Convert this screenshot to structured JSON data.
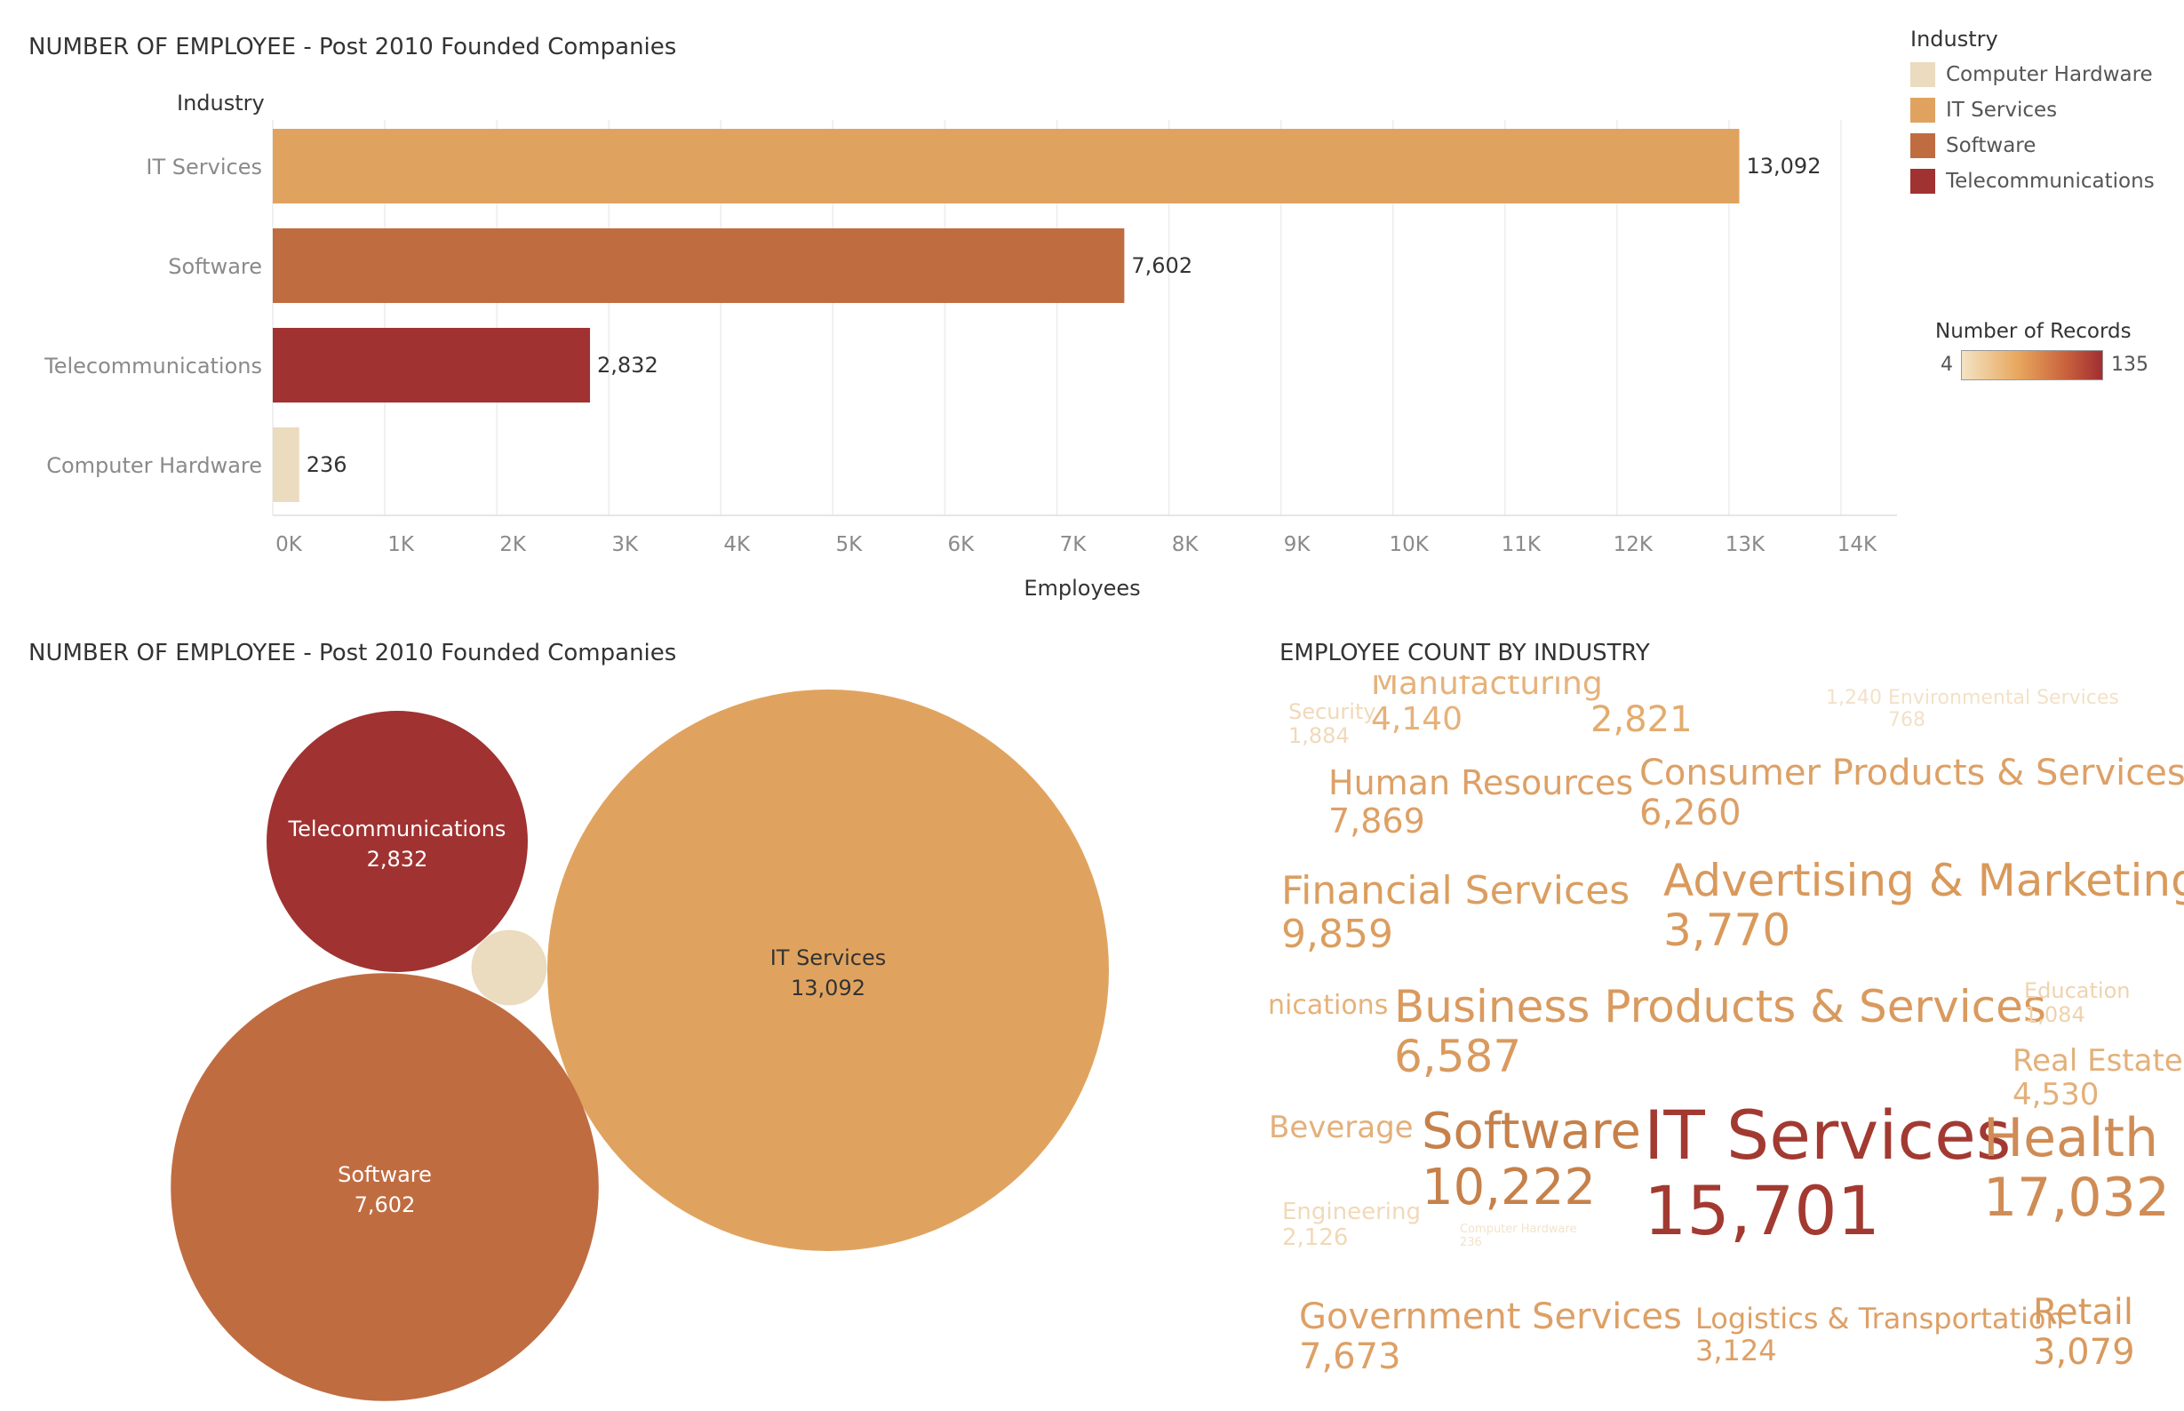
{
  "colors": {
    "computer_hardware": "#EBDBBF",
    "it_services": "#E0A35F",
    "software": "#C06C41",
    "telecommunications": "#A03231",
    "grid": "#ECECEC",
    "axis_text": "#8A8A8A",
    "title_text": "#333333"
  },
  "legend": {
    "title": "Industry",
    "items": [
      {
        "label": "Computer Hardware",
        "color": "#EBDBBF"
      },
      {
        "label": "IT Services",
        "color": "#E0A35F"
      },
      {
        "label": "Software",
        "color": "#C06C41"
      },
      {
        "label": "Telecommunications",
        "color": "#A03231"
      }
    ],
    "records_title": "Number of Records",
    "records_min": "4",
    "records_max": "135"
  },
  "chart_data": [
    {
      "type": "bar",
      "orientation": "horizontal",
      "title": "NUMBER OF EMPLOYEE - Post 2010 Founded Companies",
      "ylabel": "Industry",
      "xlabel": "Employees",
      "categories": [
        "IT Services",
        "Software",
        "Telecommunications",
        "Computer Hardware"
      ],
      "values": [
        13092,
        7602,
        2832,
        236
      ],
      "value_labels": [
        "13,092",
        "7,602",
        "2,832",
        "236"
      ],
      "colors": [
        "#E0A35F",
        "#C06C41",
        "#A03231",
        "#EBDBBF"
      ],
      "xlim": [
        0,
        14500
      ],
      "x_ticks": [
        0,
        1000,
        2000,
        3000,
        4000,
        5000,
        6000,
        7000,
        8000,
        9000,
        10000,
        11000,
        12000,
        13000,
        14000
      ],
      "x_tick_labels": [
        "0K",
        "1K",
        "2K",
        "3K",
        "4K",
        "5K",
        "6K",
        "7K",
        "8K",
        "9K",
        "10K",
        "11K",
        "12K",
        "13K",
        "14K"
      ],
      "grid": true
    },
    {
      "type": "bubble",
      "title": "NUMBER OF EMPLOYEE - Post 2010 Founded Companies",
      "items": [
        {
          "label": "IT Services",
          "value": 13092,
          "value_label": "13,092",
          "color": "#E0A35F"
        },
        {
          "label": "Software",
          "value": 7602,
          "value_label": "7,602",
          "color": "#C06C41"
        },
        {
          "label": "Telecommunications",
          "value": 2832,
          "value_label": "2,832",
          "color": "#A03231"
        },
        {
          "label": "Computer Hardware",
          "value": 236,
          "value_label": "",
          "color": "#EBDBBF"
        }
      ]
    },
    {
      "type": "word_cloud",
      "title": "EMPLOYEE COUNT BY INDUSTRY",
      "words": [
        {
          "label": "Security",
          "value": "1,884"
        },
        {
          "label": "Manufacturing",
          "value": "4,140"
        },
        {
          "label": "",
          "value": "2,821"
        },
        {
          "label": "Environmental Services",
          "value": "768"
        },
        {
          "label": "",
          "value": "1,240"
        },
        {
          "label": "Human Resources",
          "value": "7,869"
        },
        {
          "label": "Consumer Products & Services",
          "value": "6,260"
        },
        {
          "label": "Financial Services",
          "value": "9,859"
        },
        {
          "label": "Advertising & Marketing",
          "value": "3,770"
        },
        {
          "label": "nications",
          "value": ""
        },
        {
          "label": "Business Products & Services",
          "value": "6,587"
        },
        {
          "label": "Education",
          "value": "1,084"
        },
        {
          "label": "Real Estate",
          "value": "4,530"
        },
        {
          "label": "Beverage",
          "value": ""
        },
        {
          "label": "Software",
          "value": "10,222"
        },
        {
          "label": "IT Services",
          "value": "15,701"
        },
        {
          "label": "Health",
          "value": "17,032"
        },
        {
          "label": "Engineering",
          "value": "2,126"
        },
        {
          "label": "Computer Hardware",
          "value": "236"
        },
        {
          "label": "Government Services",
          "value": "7,673"
        },
        {
          "label": "Logistics & Transportation",
          "value": "3,124"
        },
        {
          "label": "Retail",
          "value": "3,079"
        }
      ]
    }
  ]
}
